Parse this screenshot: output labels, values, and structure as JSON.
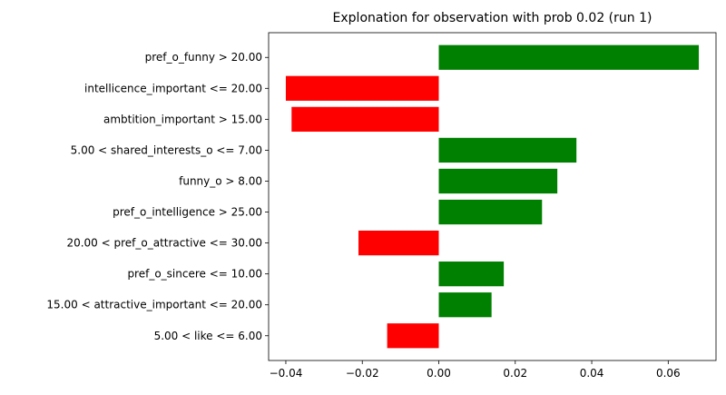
{
  "chart_data": {
    "type": "bar",
    "orientation": "horizontal",
    "title": "Explonation for observation with prob 0.02 (run 1)",
    "xlabel": "",
    "ylabel": "",
    "categories": [
      "pref_o_funny > 20.00",
      "intellicence_important <= 20.00",
      "ambtition_important > 15.00",
      "5.00 < shared_interests_o <= 7.00",
      "funny_o > 8.00",
      "pref_o_intelligence > 25.00",
      "20.00 < pref_o_attractive <= 30.00",
      "pref_o_sincere <= 10.00",
      "15.00 < attractive_important <= 20.00",
      "5.00 < like <= 6.00"
    ],
    "values": [
      0.068,
      -0.04,
      -0.0385,
      0.036,
      0.031,
      0.027,
      -0.021,
      0.017,
      0.0138,
      -0.0135
    ],
    "xlim": [
      -0.0445,
      0.0725
    ],
    "xticks": [
      -0.04,
      -0.02,
      0.0,
      0.02,
      0.04,
      0.06
    ],
    "xtick_labels": [
      "−0.04",
      "−0.02",
      "0.00",
      "0.02",
      "0.04",
      "0.06"
    ],
    "grid": false,
    "legend": "none",
    "colors": {
      "positive": "#008000",
      "negative": "#ff0000"
    }
  }
}
